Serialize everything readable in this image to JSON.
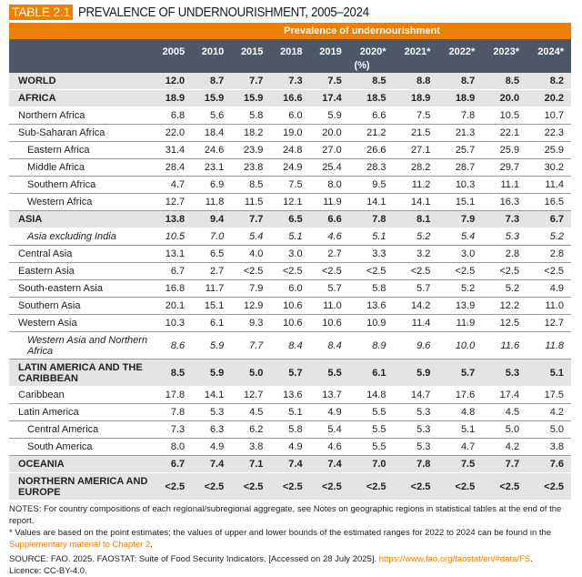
{
  "title": {
    "tag": "TABLE 2.1",
    "text": "PREVALENCE OF UNDERNOURISHMENT, 2005–2024"
  },
  "header": {
    "group_label": "Prevalence of undernourishment",
    "years": [
      "2005",
      "2010",
      "2015",
      "2018",
      "2019",
      "2020*",
      "2021*",
      "2022*",
      "2023*",
      "2024*"
    ],
    "unit": "(%)"
  },
  "colors": {
    "accent": "#ee7f00",
    "header_bg": "#4d5866",
    "aggregate_bg": "#e4e4e4"
  },
  "rows": [
    {
      "label": "WORLD",
      "style": "gray",
      "values": [
        "12.0",
        "8.7",
        "7.7",
        "7.3",
        "7.5",
        "8.5",
        "8.8",
        "8.7",
        "8.5",
        "8.2"
      ]
    },
    {
      "label": "AFRICA",
      "style": "gray",
      "values": [
        "18.9",
        "15.9",
        "15.9",
        "16.6",
        "17.4",
        "18.5",
        "18.9",
        "18.9",
        "20.0",
        "20.2"
      ]
    },
    {
      "label": "Northern Africa",
      "style": "",
      "values": [
        "6.8",
        "5.6",
        "5.8",
        "6.0",
        "5.9",
        "6.6",
        "7.5",
        "7.8",
        "10.5",
        "10.7"
      ]
    },
    {
      "label": "Sub-Saharan Africa",
      "style": "",
      "values": [
        "22.0",
        "18.4",
        "18.2",
        "19.0",
        "20.0",
        "21.2",
        "21.5",
        "21.3",
        "22.1",
        "22.3"
      ]
    },
    {
      "label": "Eastern Africa",
      "style": "ind1",
      "values": [
        "31.4",
        "24.6",
        "23.9",
        "24.8",
        "27.0",
        "26.6",
        "27.1",
        "25.7",
        "25.9",
        "25.9"
      ]
    },
    {
      "label": "Middle Africa",
      "style": "ind1",
      "values": [
        "28.4",
        "23.1",
        "23.8",
        "24.9",
        "25.4",
        "28.3",
        "28.2",
        "28.7",
        "29.7",
        "30.2"
      ]
    },
    {
      "label": "Southern Africa",
      "style": "ind1",
      "values": [
        "4.7",
        "6.9",
        "8.5",
        "7.5",
        "8.0",
        "9.5",
        "11.2",
        "10.3",
        "11.1",
        "11.4"
      ]
    },
    {
      "label": "Western Africa",
      "style": "ind1",
      "values": [
        "12.7",
        "11.8",
        "11.5",
        "12.1",
        "11.9",
        "14.1",
        "14.1",
        "15.1",
        "16.3",
        "16.5"
      ]
    },
    {
      "label": "ASIA",
      "style": "gray",
      "values": [
        "13.8",
        "9.4",
        "7.7",
        "6.5",
        "6.6",
        "7.8",
        "8.1",
        "7.9",
        "7.3",
        "6.7"
      ]
    },
    {
      "label": "Asia excluding India",
      "style": "ind1 ital",
      "values": [
        "10.5",
        "7.0",
        "5.4",
        "5.1",
        "4.6",
        "5.1",
        "5.2",
        "5.4",
        "5.3",
        "5.2"
      ]
    },
    {
      "label": "Central Asia",
      "style": "",
      "values": [
        "13.1",
        "6.5",
        "4.0",
        "3.0",
        "2.7",
        "3.3",
        "3.2",
        "3.0",
        "2.8",
        "2.8"
      ]
    },
    {
      "label": "Eastern Asia",
      "style": "",
      "values": [
        "6.7",
        "2.7",
        "<2.5",
        "<2.5",
        "<2.5",
        "<2.5",
        "<2.5",
        "<2.5",
        "<2.5",
        "<2.5"
      ]
    },
    {
      "label": "South-eastern Asia",
      "style": "",
      "values": [
        "16.8",
        "11.7",
        "7.9",
        "6.0",
        "5.7",
        "5.8",
        "5.7",
        "5.2",
        "5.2",
        "4.9"
      ]
    },
    {
      "label": "Southern Asia",
      "style": "",
      "values": [
        "20.1",
        "15.1",
        "12.9",
        "10.6",
        "11.0",
        "13.6",
        "14.2",
        "13.9",
        "12.2",
        "11.0"
      ]
    },
    {
      "label": "Western Asia",
      "style": "",
      "values": [
        "10.3",
        "6.1",
        "9.3",
        "10.6",
        "10.6",
        "10.9",
        "11.4",
        "11.9",
        "12.5",
        "12.7"
      ]
    },
    {
      "label": "Western Asia and Northern Africa",
      "style": "ind1 ital tall",
      "values": [
        "8.6",
        "5.9",
        "7.7",
        "8.4",
        "8.4",
        "8.9",
        "9.6",
        "10.0",
        "11.6",
        "11.8"
      ]
    },
    {
      "label": "LATIN AMERICA AND THE CARIBBEAN",
      "style": "gray tall",
      "values": [
        "8.5",
        "5.9",
        "5.0",
        "5.7",
        "5.5",
        "6.1",
        "5.9",
        "5.7",
        "5.3",
        "5.1"
      ]
    },
    {
      "label": "Caribbean",
      "style": "",
      "values": [
        "17.8",
        "14.1",
        "12.7",
        "13.6",
        "13.7",
        "14.8",
        "14.7",
        "17.6",
        "17.4",
        "17.5"
      ]
    },
    {
      "label": "Latin America",
      "style": "",
      "values": [
        "7.8",
        "5.3",
        "4.5",
        "5.1",
        "4.9",
        "5.5",
        "5.3",
        "4.8",
        "4.5",
        "4.2"
      ]
    },
    {
      "label": "Central America",
      "style": "ind1",
      "values": [
        "7.3",
        "6.3",
        "6.2",
        "5.8",
        "5.4",
        "5.5",
        "5.3",
        "5.1",
        "5.0",
        "5.0"
      ]
    },
    {
      "label": "South America",
      "style": "ind1",
      "values": [
        "8.0",
        "4.9",
        "3.8",
        "4.9",
        "4.6",
        "5.5",
        "5.3",
        "4.7",
        "4.2",
        "3.8"
      ]
    },
    {
      "label": "OCEANIA",
      "style": "gray",
      "values": [
        "6.7",
        "7.4",
        "7.1",
        "7.4",
        "7.4",
        "7.0",
        "7.8",
        "7.5",
        "7.7",
        "7.6"
      ]
    },
    {
      "label": "NORTHERN AMERICA AND EUROPE",
      "style": "gray tall",
      "values": [
        "<2.5",
        "<2.5",
        "<2.5",
        "<2.5",
        "<2.5",
        "<2.5",
        "<2.5",
        "<2.5",
        "<2.5",
        "<2.5"
      ]
    }
  ],
  "notes": {
    "line1": "NOTES: For country compositions of each regional/subregional aggregate, see Notes on geographic regions in statistical tables at the end of the report.",
    "line2": "* Values are based on the point estimates; the values of upper and lower bounds of the estimated ranges for 2022 to 2024 can be found in the",
    "link1": "Supplementary material to Chapter 2",
    "link1_after": ".",
    "source": "SOURCE: FAO. 2025. FAOSTAT: Suite of Food Security Indicators. [Accessed on 28 July 2025]. ",
    "source_link": "https://www.fao.org/faostat/en/#data/FS",
    "source_after": ".",
    "licence": "Licence: CC-BY-4.0."
  }
}
